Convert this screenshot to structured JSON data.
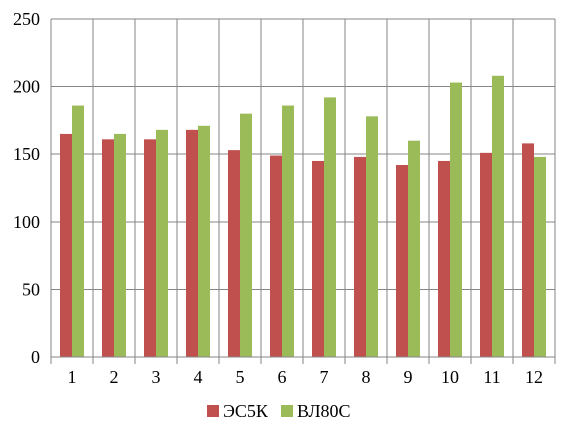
{
  "chart_data": {
    "type": "bar",
    "categories": [
      "1",
      "2",
      "3",
      "4",
      "5",
      "6",
      "7",
      "8",
      "9",
      "10",
      "11",
      "12"
    ],
    "series": [
      {
        "name": "ЭС5К",
        "color": "#c0504d",
        "values": [
          165,
          161,
          161,
          168,
          153,
          149,
          145,
          148,
          142,
          145,
          151,
          158
        ]
      },
      {
        "name": "ВЛ80С",
        "color": "#9bbb59",
        "values": [
          186,
          165,
          168,
          171,
          180,
          186,
          192,
          178,
          160,
          203,
          208,
          148
        ]
      }
    ],
    "ylim": [
      0,
      250
    ],
    "yticks": [
      "0",
      "50",
      "100",
      "150",
      "200",
      "250"
    ],
    "grid": "both",
    "legend_position": "bottom"
  }
}
